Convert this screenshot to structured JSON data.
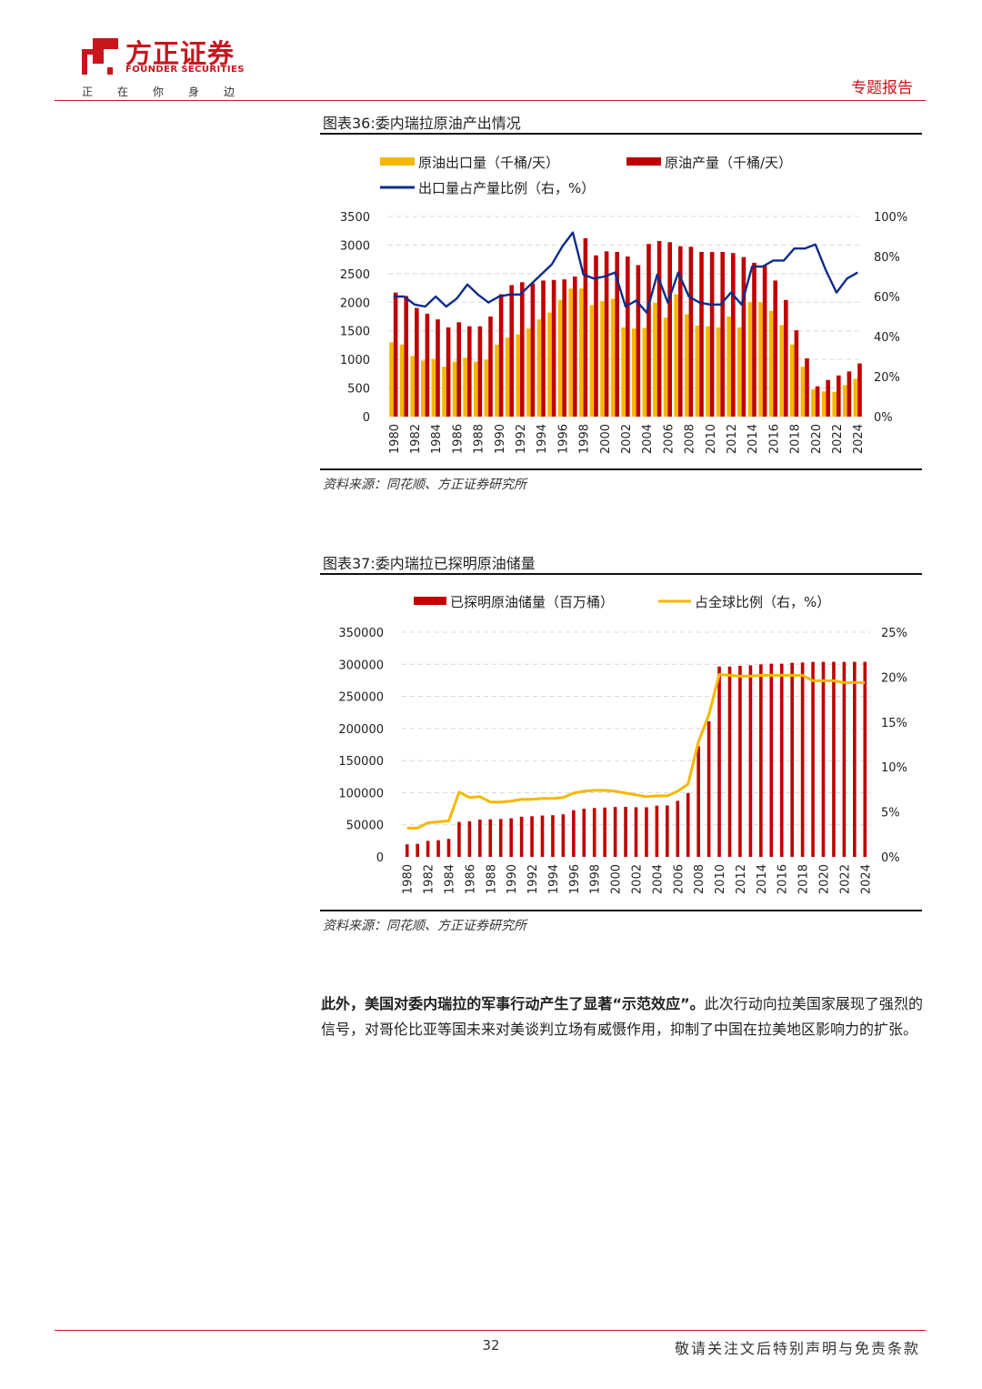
{
  "header": {
    "brand_cn": "方正证券",
    "brand_en": "FOUNDER SECURITIES",
    "slogan": [
      "正",
      "在",
      "你",
      "身",
      "边"
    ],
    "report_type": "专题报告",
    "accent_color": "#c8161d"
  },
  "figure36": {
    "title": "图表36:委内瑞拉原油产出情况",
    "source": "资料来源：同花顺、方正证券研究所"
  },
  "figure37": {
    "title": "图表37:委内瑞拉已探明原油储量",
    "source": "资料来源：同花顺、方正证券研究所"
  },
  "body": {
    "bold_text": "此外，美国对委内瑞拉的军事行动产生了显著“示范效应”。",
    "text": "此次行动向拉美国家展现了强烈的信号，对哥伦比亚等国未来对美谈判立场有威慑作用，抑制了中国在拉美地区影响力的扩张。"
  },
  "footer": {
    "page_number": "32",
    "disclaimer": "敬请关注文后特别声明与免责条款"
  },
  "chart_data": [
    {
      "type": "bar",
      "title": "委内瑞拉原油产出情况",
      "categories": [
        1980,
        1981,
        1982,
        1983,
        1984,
        1985,
        1986,
        1987,
        1988,
        1989,
        1990,
        1991,
        1992,
        1993,
        1994,
        1995,
        1996,
        1997,
        1998,
        1999,
        2000,
        2001,
        2002,
        2003,
        2004,
        2005,
        2006,
        2007,
        2008,
        2009,
        2010,
        2011,
        2012,
        2013,
        2014,
        2015,
        2016,
        2017,
        2018,
        2019,
        2020,
        2021,
        2022,
        2023,
        2024
      ],
      "x_tick_labels": [
        "1980",
        "1982",
        "1984",
        "1986",
        "1988",
        "1990",
        "1992",
        "1994",
        "1996",
        "1998",
        "2000",
        "2002",
        "2004",
        "2006",
        "2008",
        "2010",
        "2012",
        "2014",
        "2016",
        "2018",
        "2020",
        "2022",
        "2024"
      ],
      "y_left_ticks": [
        "0",
        "500",
        "1000",
        "1500",
        "2000",
        "2500",
        "3000",
        "3500"
      ],
      "y_right_ticks": [
        "0%",
        "20%",
        "40%",
        "60%",
        "80%",
        "100%"
      ],
      "ylim_left": [
        0,
        3500
      ],
      "ylim_right": [
        0,
        100
      ],
      "series": [
        {
          "name": "原油出口量（千桶/天）",
          "kind": "bar",
          "axis": "left",
          "color": "#f5b800",
          "values": [
            1300,
            1260,
            1060,
            980,
            1010,
            870,
            960,
            1030,
            960,
            1000,
            1260,
            1380,
            1440,
            1540,
            1700,
            1820,
            2040,
            2240,
            2240,
            1950,
            2020,
            2060,
            1560,
            1540,
            1550,
            1990,
            1730,
            2140,
            1790,
            1590,
            1580,
            1560,
            1750,
            1560,
            2000,
            2000,
            1850,
            1600,
            1260,
            870,
            480,
            440,
            430,
            550,
            660
          ]
        },
        {
          "name": "原油产量（千桶/天）",
          "kind": "bar",
          "axis": "left",
          "color": "#c00000",
          "values": [
            2170,
            2110,
            1900,
            1800,
            1700,
            1560,
            1650,
            1580,
            1580,
            1750,
            2140,
            2300,
            2350,
            2330,
            2380,
            2390,
            2400,
            2450,
            3120,
            2820,
            2890,
            2880,
            2800,
            2650,
            3020,
            3070,
            3050,
            2980,
            2970,
            2880,
            2880,
            2880,
            2860,
            2790,
            2690,
            2640,
            2380,
            2040,
            1510,
            1020,
            530,
            640,
            720,
            790,
            930
          ]
        },
        {
          "name": "出口量占产量比例（右，%）",
          "kind": "line",
          "axis": "right",
          "color": "#0f2c8c",
          "values": [
            60,
            60,
            56,
            55,
            60,
            55,
            59,
            66,
            61,
            57,
            60,
            61,
            61,
            66,
            71,
            76,
            85,
            92,
            71,
            69,
            70,
            72,
            55,
            58,
            52,
            71,
            57,
            72,
            60,
            57,
            56,
            56,
            62,
            56,
            75,
            75,
            78,
            78,
            84,
            84,
            86,
            73,
            62,
            69,
            72
          ]
        }
      ]
    },
    {
      "type": "bar",
      "title": "委内瑞拉已探明原油储量",
      "categories": [
        1980,
        1981,
        1982,
        1983,
        1984,
        1985,
        1986,
        1987,
        1988,
        1989,
        1990,
        1991,
        1992,
        1993,
        1994,
        1995,
        1996,
        1997,
        1998,
        1999,
        2000,
        2001,
        2002,
        2003,
        2004,
        2005,
        2006,
        2007,
        2008,
        2009,
        2010,
        2011,
        2012,
        2013,
        2014,
        2015,
        2016,
        2017,
        2018,
        2019,
        2020,
        2021,
        2022,
        2023,
        2024
      ],
      "x_tick_labels": [
        "1980",
        "1982",
        "1984",
        "1986",
        "1988",
        "1990",
        "1992",
        "1994",
        "1996",
        "1998",
        "2000",
        "2002",
        "2004",
        "2006",
        "2008",
        "2010",
        "2012",
        "2014",
        "2016",
        "2018",
        "2020",
        "2022",
        "2024"
      ],
      "y_left_ticks": [
        "0",
        "50000",
        "100000",
        "150000",
        "200000",
        "250000",
        "300000",
        "350000"
      ],
      "y_right_ticks": [
        "0%",
        "5%",
        "10%",
        "15%",
        "20%",
        "25%"
      ],
      "ylim_left": [
        0,
        350000
      ],
      "ylim_right": [
        0,
        25
      ],
      "series": [
        {
          "name": "已探明原油储量（百万桶）",
          "kind": "bar",
          "axis": "left",
          "color": "#c00000",
          "values": [
            19500,
            20300,
            24900,
            25900,
            28000,
            54500,
            55500,
            58100,
            58500,
            59000,
            60100,
            62600,
            63300,
            64400,
            64900,
            66300,
            72700,
            74900,
            76100,
            76800,
            77700,
            77800,
            77300,
            77200,
            79700,
            80000,
            87300,
            99400,
            172300,
            211200,
            296500,
            296500,
            297600,
            298400,
            299900,
            300900,
            300900,
            302300,
            302800,
            303800,
            303800,
            303800,
            303800,
            303800,
            303800
          ]
        },
        {
          "name": "占全球比例（右，%）",
          "kind": "line",
          "axis": "right",
          "color": "#f5b800",
          "values": [
            3.2,
            3.2,
            3.8,
            3.9,
            4.0,
            7.2,
            6.6,
            6.7,
            6.1,
            6.1,
            6.2,
            6.4,
            6.4,
            6.5,
            6.5,
            6.6,
            7.1,
            7.3,
            7.4,
            7.4,
            7.3,
            7.1,
            6.9,
            6.7,
            6.8,
            6.8,
            7.3,
            8.1,
            12.8,
            15.8,
            20.3,
            20.2,
            20.1,
            20.1,
            20.2,
            20.2,
            20.2,
            20.2,
            20.2,
            19.6,
            19.6,
            19.6,
            19.4,
            19.4,
            19.4
          ]
        }
      ]
    }
  ]
}
